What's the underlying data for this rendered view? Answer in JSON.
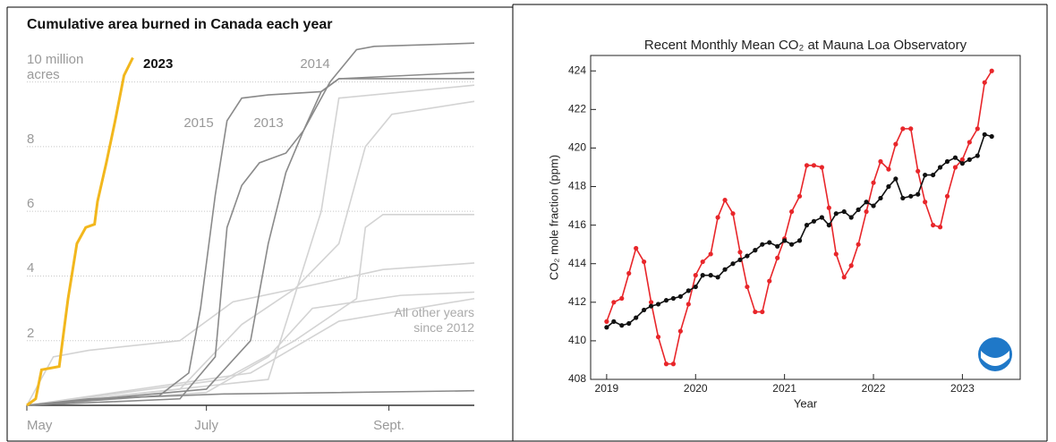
{
  "chart_data": [
    {
      "type": "line",
      "title": "Cumulative area burned in Canada each year",
      "xlim": [
        0,
        152
      ],
      "xticks": [
        {
          "value": 0,
          "label": "May"
        },
        {
          "value": 61,
          "label": "July"
        },
        {
          "value": 123,
          "label": "Sept."
        }
      ],
      "ylim": [
        0,
        11.4
      ],
      "yticks": [
        2,
        4,
        6,
        8,
        {
          "value": 10,
          "label": "10 million acres"
        }
      ],
      "grid": true,
      "annotations": [
        "All other years since 2012"
      ],
      "series": [
        {
          "name": "2023",
          "color": "#f2b71d",
          "x": [
            0,
            3,
            5,
            11,
            14,
            17,
            20,
            23,
            24,
            27,
            30,
            33,
            36
          ],
          "values": [
            0,
            0.2,
            1.1,
            1.2,
            3.3,
            5.0,
            5.5,
            5.6,
            6.3,
            7.5,
            8.8,
            10.2,
            10.75
          ]
        },
        {
          "name": "2015",
          "color": "#8a8a8a",
          "x": [
            0,
            45,
            55,
            59,
            64,
            68,
            73,
            82,
            100,
            106,
            152
          ],
          "values": [
            0,
            0.3,
            1.0,
            3.0,
            6.5,
            8.8,
            9.5,
            9.6,
            9.7,
            10.1,
            10.1
          ]
        },
        {
          "name": "2013",
          "color": "#8a8a8a",
          "x": [
            0,
            52,
            64,
            68,
            73,
            79,
            88,
            94,
            100,
            106,
            152
          ],
          "values": [
            0,
            0.2,
            1.5,
            5.5,
            6.8,
            7.5,
            7.8,
            8.5,
            9.7,
            10.1,
            10.3
          ]
        },
        {
          "name": "2014",
          "color": "#8a8a8a",
          "x": [
            0,
            61,
            76,
            82,
            88,
            94,
            103,
            112,
            118,
            152
          ],
          "values": [
            0,
            0.5,
            2.0,
            5.0,
            7.2,
            8.5,
            10.0,
            11.0,
            11.1,
            11.2
          ]
        },
        {
          "color": "#8a8a8a",
          "x": [
            0,
            21,
            67,
            152
          ],
          "values": [
            0,
            0.2,
            0.35,
            0.45
          ]
        },
        {
          "color": "#d3d3d3",
          "x": [
            0,
            9,
            21,
            52,
            70,
            91,
            106,
            115,
            124,
            152
          ],
          "values": [
            0,
            1.5,
            1.7,
            2.0,
            3.2,
            3.6,
            5.0,
            8.0,
            9.0,
            9.4
          ]
        },
        {
          "color": "#d3d3d3",
          "x": [
            0,
            67,
            91,
            112,
            115,
            121,
            152
          ],
          "values": [
            0,
            0.8,
            2.0,
            3.3,
            5.5,
            5.9,
            5.9
          ]
        },
        {
          "color": "#d3d3d3",
          "x": [
            0,
            52,
            73,
            91,
            121,
            152
          ],
          "values": [
            0,
            0.5,
            2.5,
            3.6,
            4.2,
            4.4
          ]
        },
        {
          "color": "#d3d3d3",
          "x": [
            0,
            61,
            82,
            97,
            127,
            152
          ],
          "values": [
            0,
            0.4,
            1.5,
            3.0,
            3.4,
            3.5
          ]
        },
        {
          "color": "#d3d3d3",
          "x": [
            0,
            76,
            106,
            152
          ],
          "values": [
            0,
            1.0,
            2.6,
            3.3
          ]
        },
        {
          "color": "#d3d3d3",
          "x": [
            0,
            82,
            100,
            106,
            152
          ],
          "values": [
            0,
            0.8,
            6.0,
            9.5,
            9.9
          ]
        }
      ]
    },
    {
      "type": "line",
      "title": "Recent Monthly Mean CO₂ at Mauna Loa Observatory",
      "x_label": "Year",
      "y_label": "CO₂ mole fraction (ppm)",
      "xlim": [
        2018.82,
        2023.65
      ],
      "xticks": [
        2019,
        2020,
        2021,
        2022,
        2023
      ],
      "ylim": [
        408,
        424.8
      ],
      "yticks": [
        408,
        410,
        412,
        414,
        416,
        418,
        420,
        422,
        424
      ],
      "grid": false,
      "markers": true,
      "x": [
        2019.0,
        2019.08,
        2019.17,
        2019.25,
        2019.33,
        2019.42,
        2019.5,
        2019.58,
        2019.67,
        2019.75,
        2019.83,
        2019.92,
        2020.0,
        2020.08,
        2020.17,
        2020.25,
        2020.33,
        2020.42,
        2020.5,
        2020.58,
        2020.67,
        2020.75,
        2020.83,
        2020.92,
        2021.0,
        2021.08,
        2021.17,
        2021.25,
        2021.33,
        2021.42,
        2021.5,
        2021.58,
        2021.67,
        2021.75,
        2021.83,
        2021.92,
        2022.0,
        2022.08,
        2022.17,
        2022.25,
        2022.33,
        2022.42,
        2022.5,
        2022.58,
        2022.67,
        2022.75,
        2022.83,
        2022.92,
        2023.0,
        2023.08,
        2023.17,
        2023.25,
        2023.33
      ],
      "series": [
        {
          "color": "#e8262a",
          "values": [
            411.0,
            412.0,
            412.2,
            413.5,
            414.8,
            414.1,
            412.0,
            410.2,
            408.8,
            408.8,
            410.5,
            411.9,
            413.4,
            414.1,
            414.5,
            416.4,
            417.3,
            416.6,
            414.6,
            412.8,
            411.5,
            411.5,
            413.1,
            414.3,
            415.3,
            416.7,
            417.5,
            419.1,
            419.1,
            419.0,
            416.9,
            414.5,
            413.3,
            413.9,
            415.0,
            416.7,
            418.2,
            419.3,
            418.9,
            420.2,
            421.0,
            421.0,
            418.8,
            417.2,
            416.0,
            415.9,
            417.5,
            419.0,
            419.4,
            420.3,
            421.0,
            423.4,
            424.0
          ]
        },
        {
          "color": "#111111",
          "values": [
            410.7,
            411.0,
            410.8,
            410.9,
            411.2,
            411.6,
            411.8,
            411.9,
            412.1,
            412.2,
            412.3,
            412.6,
            412.8,
            413.4,
            413.4,
            413.3,
            413.7,
            414.0,
            414.2,
            414.4,
            414.7,
            415.0,
            415.1,
            414.9,
            415.2,
            415.0,
            415.2,
            416.0,
            416.2,
            416.4,
            416.0,
            416.6,
            416.7,
            416.4,
            416.8,
            417.2,
            417.0,
            417.4,
            418.0,
            418.4,
            417.4,
            417.5,
            417.6,
            418.6,
            418.6,
            419.0,
            419.3,
            419.5,
            419.2,
            419.4,
            419.6,
            420.7,
            420.6
          ]
        }
      ]
    }
  ]
}
